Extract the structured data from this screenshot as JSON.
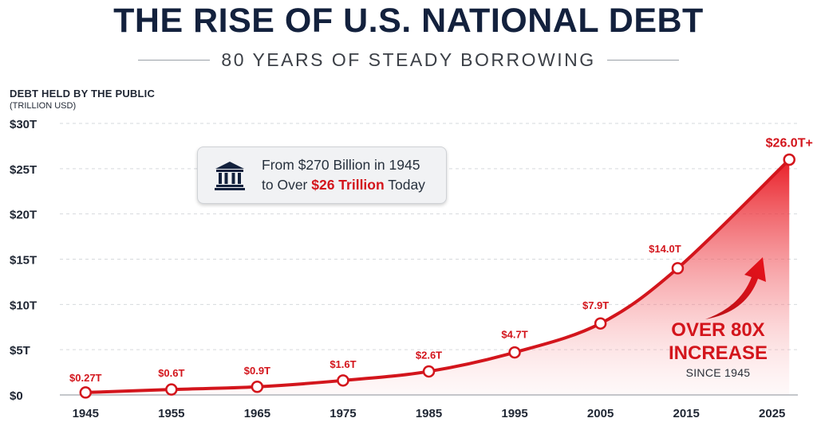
{
  "header": {
    "title": "THE RISE OF U.S. NATIONAL DEBT",
    "subtitle": "80 YEARS OF STEADY BORROWING"
  },
  "axis": {
    "ylabel": "DEBT HELD BY THE PUBLIC",
    "yunit": "(TRILLION USD)"
  },
  "callout": {
    "line1": "From $270 Billion in 1945",
    "line2_prefix": "to Over ",
    "line2_highlight": "$26 Trillion",
    "line2_suffix": " Today",
    "icon": "bank-building-icon"
  },
  "annotation": {
    "line1": "OVER 80X",
    "line2": "INCREASE",
    "line3": "SINCE 1945"
  },
  "colors": {
    "accent": "#d3151c",
    "title": "#13213d",
    "grid": "#d6d9dd"
  },
  "chart_data": {
    "type": "area",
    "title": "THE RISE OF U.S. NATIONAL DEBT",
    "subtitle": "80 YEARS OF STEADY BORROWING",
    "xlabel": "",
    "ylabel": "DEBT HELD BY THE PUBLIC (TRILLION USD)",
    "xlim": [
      1942,
      2028
    ],
    "ylim": [
      0,
      30
    ],
    "x_ticks": [
      1945,
      1955,
      1965,
      1975,
      1985,
      1995,
      2005,
      2015,
      2025
    ],
    "y_ticks": [
      0,
      5,
      10,
      15,
      20,
      25,
      30
    ],
    "y_tick_labels": [
      "$0",
      "$5T",
      "$10T",
      "$15T",
      "$20T",
      "$25T",
      "$30T"
    ],
    "grid": "horizontal dashed",
    "series": [
      {
        "x": [
          1945,
          1955,
          1965,
          1975,
          1985,
          1995,
          2005,
          2014,
          2027
        ],
        "values": [
          0.27,
          0.6,
          0.9,
          1.6,
          2.6,
          4.7,
          7.9,
          14.0,
          26.0
        ],
        "labels": [
          "$0.27T",
          "$0.6T",
          "$0.9T",
          "$1.6T",
          "$2.6T",
          "$4.7T",
          "$7.9T",
          "$14.0T",
          "$26.0T+"
        ]
      }
    ]
  }
}
